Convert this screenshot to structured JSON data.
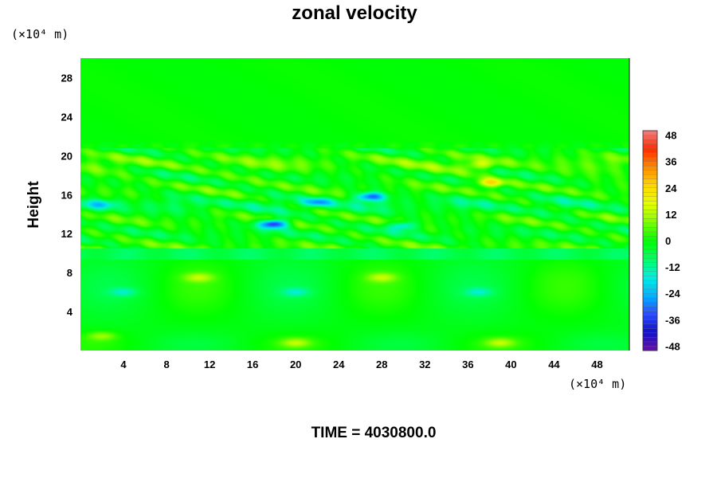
{
  "chart_data": {
    "type": "heatmap",
    "title": "zonal velocity",
    "xlabel": "",
    "ylabel": "Height",
    "x_unit": "(×10⁴ m)",
    "y_unit": "(×10⁴ m)",
    "xlim": [
      0,
      51
    ],
    "ylim": [
      0,
      30
    ],
    "x_ticks": [
      4,
      8,
      12,
      16,
      20,
      24,
      28,
      32,
      36,
      40,
      44,
      48
    ],
    "y_ticks": [
      4,
      8,
      12,
      16,
      20,
      24,
      28
    ],
    "colorbar": {
      "min": -50,
      "max": 50,
      "ticks": [
        48,
        36,
        24,
        12,
        0,
        -12,
        -24,
        -36,
        -48
      ],
      "colors_low_to_high": [
        "#6a0dad",
        "#1010c8",
        "#2a4cff",
        "#00b4ff",
        "#00f0e0",
        "#00ff60",
        "#00ff00",
        "#80ff00",
        "#e6ff00",
        "#ffd700",
        "#ff8c00",
        "#ff2a00",
        "#f08080"
      ]
    },
    "features": [
      {
        "x": 18,
        "y": 13,
        "value": -40
      },
      {
        "x": 27,
        "y": 15.8,
        "value": -30
      },
      {
        "x": 22,
        "y": 15.2,
        "value": -22
      },
      {
        "x": 30,
        "y": 12.8,
        "value": -22
      },
      {
        "x": 38,
        "y": 17.2,
        "value": 24
      },
      {
        "x": 37,
        "y": 19,
        "value": 14
      },
      {
        "x": 2,
        "y": 15,
        "value": -14
      },
      {
        "x": 11,
        "y": 7.5,
        "value": 12
      },
      {
        "x": 28,
        "y": 7.5,
        "value": 12
      },
      {
        "x": 4,
        "y": 6,
        "value": -10
      },
      {
        "x": 20,
        "y": 6,
        "value": -10
      },
      {
        "x": 37,
        "y": 6,
        "value": -10
      },
      {
        "x": 20,
        "y": 0.8,
        "value": 12
      },
      {
        "x": 39,
        "y": 0.8,
        "value": 12
      },
      {
        "x": 2,
        "y": 1.5,
        "value": 10
      }
    ]
  },
  "time_label": "TIME = 4030800.0"
}
